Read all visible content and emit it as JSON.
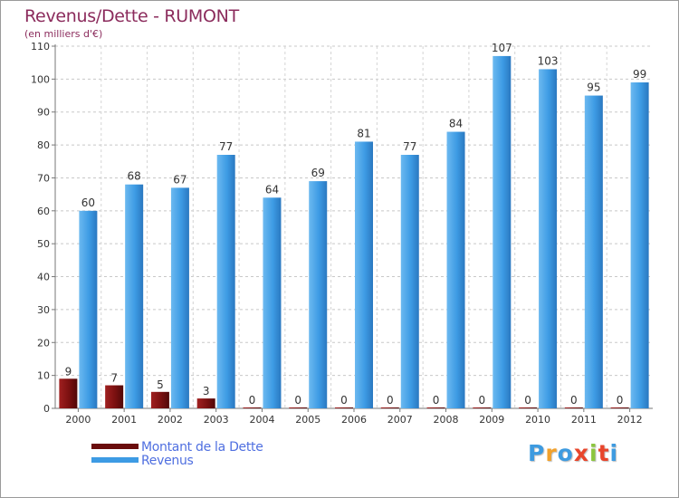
{
  "chart_data": {
    "type": "bar",
    "title": "Revenus/Dette - RUMONT",
    "subtitle": "(en milliers d'€)",
    "categories": [
      "2000",
      "2001",
      "2002",
      "2003",
      "2004",
      "2005",
      "2006",
      "2007",
      "2008",
      "2009",
      "2010",
      "2011",
      "2012"
    ],
    "series": [
      {
        "name": "Montant de la Dette",
        "color": "#7a1010",
        "values": [
          9,
          7,
          5,
          3,
          0,
          0,
          0,
          0,
          0,
          0,
          0,
          0,
          0
        ]
      },
      {
        "name": "Revenus",
        "color": "#3d9be4",
        "values": [
          60,
          68,
          67,
          77,
          64,
          69,
          81,
          77,
          84,
          107,
          103,
          95,
          99
        ]
      }
    ],
    "ylim": [
      0,
      110
    ],
    "yticks": [
      0,
      10,
      20,
      30,
      40,
      50,
      60,
      70,
      80,
      90,
      100,
      110
    ],
    "grid": true,
    "legend": "bottom-left"
  },
  "legend": {
    "debt_label": "Montant de la Dette",
    "revenue_label": "Revenus"
  },
  "logo": {
    "letters": [
      "P",
      "r",
      "o",
      "x",
      "i",
      "t",
      "i"
    ],
    "colors": [
      "#3e9be0",
      "#f2a12b",
      "#3e9be0",
      "#e8452b",
      "#8cc63f",
      "#e8452b",
      "#3e9be0"
    ]
  }
}
